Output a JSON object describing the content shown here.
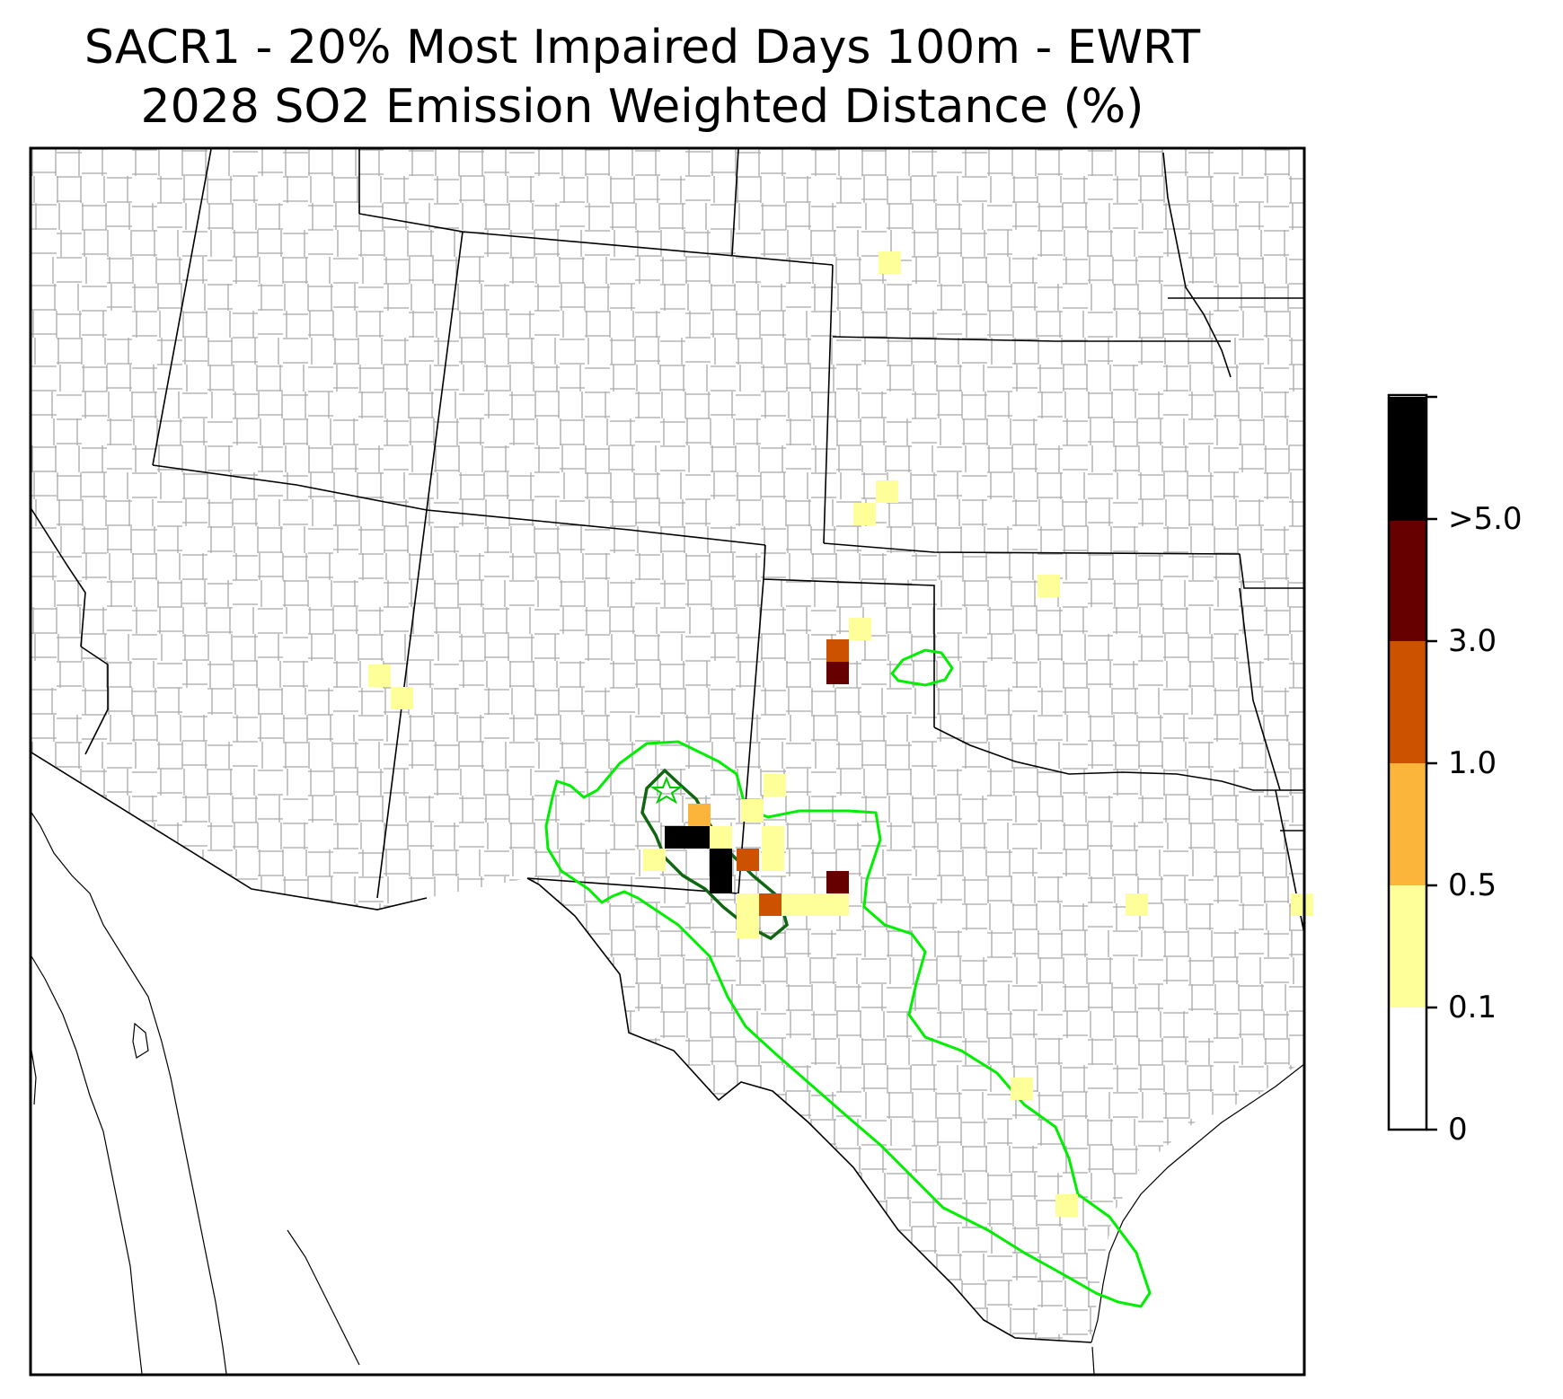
{
  "title": {
    "line1": "SACR1 - 20% Most Impaired Days 100m - EWRT",
    "line2": "2028 SO2 Emission Weighted Distance (%)"
  },
  "colorbar": {
    "labels": [
      "0",
      "0.1",
      "0.5",
      "1.0",
      "3.0",
      ">5.0"
    ],
    "bins": [
      {
        "range": "0 - 0.1",
        "color": "#ffffff"
      },
      {
        "range": "0.1 - 0.5",
        "color": "#ffff99"
      },
      {
        "range": "0.5 - 1.0",
        "color": "#fcb53b"
      },
      {
        "range": "1.0 - 3.0",
        "color": "#cc5200"
      },
      {
        "range": "3.0 - 5.0",
        "color": "#660000"
      },
      {
        "range": ">5.0",
        "color": "#000000"
      }
    ]
  },
  "map": {
    "region": "Southwestern / South-Central United States",
    "site_marker": "green-star",
    "contour_colors": {
      "outer": "#00ee00",
      "inner": "#116611"
    }
  }
}
